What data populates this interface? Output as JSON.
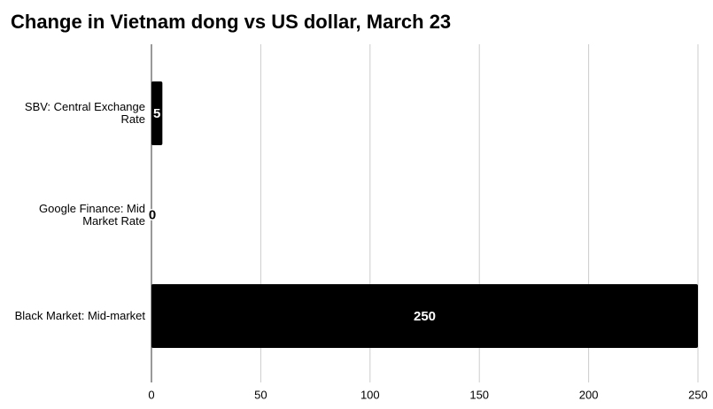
{
  "chart_data": {
    "type": "bar",
    "orientation": "horizontal",
    "title": "Change in Vietnam dong vs US dollar, March 23",
    "categories": [
      "SBV: Central Exchange Rate",
      "Google Finance: Mid Market Rate",
      "Black Market: Mid-market"
    ],
    "values": [
      5,
      0,
      250
    ],
    "color": "#000000",
    "xlim": [
      0,
      250
    ],
    "xticks": [
      0,
      50,
      100,
      150,
      200,
      250
    ],
    "grid": true
  }
}
